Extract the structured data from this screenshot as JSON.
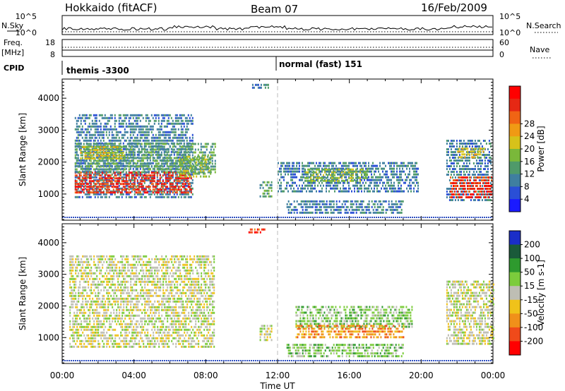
{
  "header": {
    "station": "Hokkaido (fitACF)",
    "beam": "Beam 07",
    "date": "16/Feb/2009"
  },
  "status": {
    "nsky_label": "N.Sky",
    "nsky_ticks": [
      "10^5",
      "10^0"
    ],
    "nsearch_label": "N.Search",
    "nsearch_ticks": [
      "10^5",
      "10^0"
    ],
    "freq_label": "Freq.",
    "freq_unit": "[MHz]",
    "freq_ticks": [
      "18",
      "8"
    ],
    "nave_label": "Nave",
    "nave_ticks": [
      "60",
      "0"
    ],
    "cpid_label": "CPID",
    "cpid_segments": [
      {
        "label": "themis -3300",
        "start_hour": 0,
        "end_hour": 12
      },
      {
        "label": "normal (fast) 151",
        "start_hour": 12,
        "end_hour": 24
      }
    ]
  },
  "chart_data": [
    {
      "type": "heatmap",
      "name": "power-panel",
      "xlabel": "",
      "ylabel": "Slant Range [km]",
      "x_range_hours": [
        0,
        24
      ],
      "ylim": [
        180,
        4600
      ],
      "y_ticks": [
        "1000",
        "2000",
        "3000",
        "4000"
      ],
      "y_tick_values": [
        1000,
        2000,
        3000,
        4000
      ],
      "colorbar": {
        "label": "Power [dB]",
        "range": [
          0,
          32
        ],
        "ticks": [
          "4",
          "8",
          "12",
          "16",
          "20",
          "24",
          "28"
        ],
        "tick_values": [
          4,
          8,
          12,
          16,
          20,
          24,
          28
        ],
        "colors": [
          "#1a1aff",
          "#2a4fd6",
          "#3f7fa0",
          "#4f9a6a",
          "#7ab83a",
          "#d6c21a",
          "#f09a14",
          "#f06414",
          "#e62814",
          "#ff0000"
        ]
      },
      "echo_regions": [
        {
          "t0": 0.7,
          "t1": 7.3,
          "r0": 900,
          "r1": 3500,
          "power": 8
        },
        {
          "t0": 0.7,
          "t1": 7.2,
          "r0": 1050,
          "r1": 1700,
          "power": 27
        },
        {
          "t0": 0.7,
          "t1": 8.5,
          "r0": 1700,
          "r1": 2600,
          "power": 12
        },
        {
          "t0": 1.0,
          "t1": 3.5,
          "r0": 2100,
          "r1": 2500,
          "power": 17
        },
        {
          "t0": 6.5,
          "t1": 8.3,
          "r0": 1500,
          "r1": 2200,
          "power": 14
        },
        {
          "t0": 10.5,
          "t1": 11.5,
          "r0": 4300,
          "r1": 4450,
          "power": 8
        },
        {
          "t0": 11.0,
          "t1": 11.7,
          "r0": 900,
          "r1": 1400,
          "power": 10
        },
        {
          "t0": 12.0,
          "t1": 19.8,
          "r0": 1100,
          "r1": 2000,
          "power": 8
        },
        {
          "t0": 13.5,
          "t1": 17.0,
          "r0": 1400,
          "r1": 1800,
          "power": 13
        },
        {
          "t0": 12.5,
          "t1": 19.0,
          "r0": 400,
          "r1": 800,
          "power": 6
        },
        {
          "t0": 21.4,
          "t1": 23.9,
          "r0": 800,
          "r1": 2700,
          "power": 8
        },
        {
          "t0": 21.6,
          "t1": 23.9,
          "r0": 850,
          "r1": 1550,
          "power": 27
        },
        {
          "t0": 22.0,
          "t1": 23.5,
          "r0": 2100,
          "r1": 2450,
          "power": 16
        }
      ]
    },
    {
      "type": "heatmap",
      "name": "velocity-panel",
      "xlabel": "Time UT",
      "ylabel": "Slant Range [km]",
      "x_range_hours": [
        0,
        24
      ],
      "x_ticks": [
        "00:00",
        "04:00",
        "08:00",
        "12:00",
        "16:00",
        "20:00",
        "00:00"
      ],
      "x_tick_hours": [
        0,
        4,
        8,
        12,
        16,
        20,
        24
      ],
      "ylim": [
        180,
        4600
      ],
      "y_ticks": [
        "1000",
        "2000",
        "3000",
        "4000"
      ],
      "y_tick_values": [
        1000,
        2000,
        3000,
        4000
      ],
      "colorbar": {
        "label": "Velocity [m s-1]",
        "ticks": [
          "200",
          "100",
          "50",
          "15",
          "-15",
          "-50",
          "-100",
          "-200"
        ],
        "tick_values": [
          200,
          100,
          50,
          15,
          -15,
          -50,
          -100,
          -200
        ],
        "colors": [
          "#1a2ec8",
          "#1a5a3a",
          "#2e9a2e",
          "#7ccc3c",
          "#bebeb4",
          "#f0c21a",
          "#f0901a",
          "#f04a1a",
          "#ff0000"
        ]
      },
      "echo_regions": [
        {
          "t0": 0.4,
          "t1": 8.5,
          "r0": 700,
          "r1": 3600,
          "velocity": 0
        },
        {
          "t0": 11.0,
          "t1": 11.7,
          "r0": 900,
          "r1": 1400,
          "velocity": 10
        },
        {
          "t0": 10.3,
          "t1": 11.3,
          "r0": 4300,
          "r1": 4450,
          "velocity": -200
        },
        {
          "t0": 13.0,
          "t1": 19.5,
          "r0": 1300,
          "r1": 2000,
          "velocity": 40
        },
        {
          "t0": 13.0,
          "t1": 19.0,
          "r0": 1000,
          "r1": 1400,
          "velocity": -60
        },
        {
          "t0": 12.5,
          "t1": 19.0,
          "r0": 400,
          "r1": 800,
          "velocity": 30
        },
        {
          "t0": 21.4,
          "t1": 24.0,
          "r0": 800,
          "r1": 2800,
          "velocity": 0
        }
      ]
    }
  ]
}
